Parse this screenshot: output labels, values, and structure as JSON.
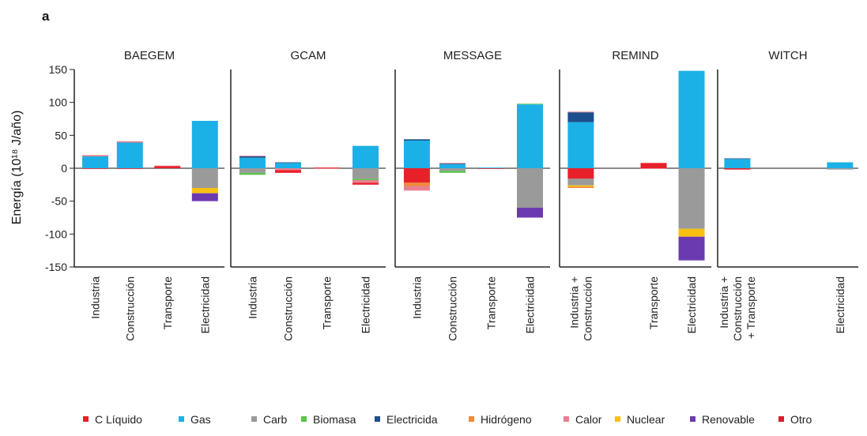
{
  "panel_label": "a",
  "chart_data": {
    "type": "bar",
    "stacked": true,
    "ylabel": "Energía (10¹⁸ J/año)",
    "ylim": [
      -150,
      150
    ],
    "yticks": [
      150,
      100,
      50,
      0,
      -50,
      -100,
      -150
    ],
    "grid": false,
    "legend_position": "bottom",
    "series": [
      {
        "name": "C Líquido",
        "color": "#e8202a"
      },
      {
        "name": "Gas",
        "color": "#1bb1e6"
      },
      {
        "name": "Carb",
        "color": "#9a9a9a"
      },
      {
        "name": "Biomasa",
        "color": "#5cc24a"
      },
      {
        "name": "Electricida",
        "color": "#1d4f8c"
      },
      {
        "name": "Hidrógeno",
        "color": "#ef8a3a"
      },
      {
        "name": "Calor",
        "color": "#e98090"
      },
      {
        "name": "Nuclear",
        "color": "#f9c012"
      },
      {
        "name": "Renovable",
        "color": "#6c3ab0"
      },
      {
        "name": "Otro",
        "color": "#d81e2a"
      }
    ],
    "panels": [
      {
        "title": "BAEGEM",
        "categories": [
          {
            "label": "Industria",
            "segments": [
              {
                "series": "Gas",
                "value": 18
              },
              {
                "series": "Calor",
                "value": 2
              },
              {
                "series": "C Líquido",
                "value": -1
              }
            ]
          },
          {
            "label": "Construcción",
            "segments": [
              {
                "series": "Gas",
                "value": 39
              },
              {
                "series": "Calor",
                "value": 2
              },
              {
                "series": "C Líquido",
                "value": -1
              }
            ]
          },
          {
            "label": "Transporte",
            "segments": [
              {
                "series": "C Líquido",
                "value": 3
              },
              {
                "series": "Calor",
                "value": 1
              }
            ]
          },
          {
            "label": "Electricidad",
            "segments": [
              {
                "series": "Gas",
                "value": 72
              },
              {
                "series": "Carb",
                "value": -30
              },
              {
                "series": "Nuclear",
                "value": -8
              },
              {
                "series": "Renovable",
                "value": -12
              }
            ]
          }
        ]
      },
      {
        "title": "GCAM",
        "categories": [
          {
            "label": "Industria",
            "segments": [
              {
                "series": "Gas",
                "value": 16
              },
              {
                "series": "Electricida",
                "value": 2
              },
              {
                "series": "Calor",
                "value": 1
              },
              {
                "series": "Carb",
                "value": -7
              },
              {
                "series": "Biomasa",
                "value": -3
              }
            ]
          },
          {
            "label": "Construcción",
            "segments": [
              {
                "series": "Gas",
                "value": 8
              },
              {
                "series": "Electricida",
                "value": 1
              },
              {
                "series": "Calor",
                "value": -3
              },
              {
                "series": "C Líquido",
                "value": -4
              }
            ]
          },
          {
            "label": "Transporte",
            "segments": [
              {
                "series": "C Líquido",
                "value": 1
              },
              {
                "series": "Calor",
                "value": -1
              }
            ]
          },
          {
            "label": "Electricidad",
            "segments": [
              {
                "series": "Gas",
                "value": 34
              },
              {
                "series": "Carb",
                "value": -16
              },
              {
                "series": "Biomasa",
                "value": -2
              },
              {
                "series": "Calor",
                "value": -4
              },
              {
                "series": "C Líquido",
                "value": -3
              }
            ]
          }
        ]
      },
      {
        "title": "MESSAGE",
        "categories": [
          {
            "label": "Industria",
            "segments": [
              {
                "series": "Gas",
                "value": 42
              },
              {
                "series": "Electricida",
                "value": 2
              },
              {
                "series": "C Líquido",
                "value": -22
              },
              {
                "series": "Hidrógeno",
                "value": -5
              },
              {
                "series": "Calor",
                "value": -7
              }
            ]
          },
          {
            "label": "Construcción",
            "segments": [
              {
                "series": "Gas",
                "value": 6
              },
              {
                "series": "Electricida",
                "value": 1
              },
              {
                "series": "Calor",
                "value": 1
              },
              {
                "series": "Carb",
                "value": -4
              },
              {
                "series": "Biomasa",
                "value": -3
              }
            ]
          },
          {
            "label": "Transporte",
            "segments": [
              {
                "series": "Gas",
                "value": 1
              },
              {
                "series": "C Líquido",
                "value": -1
              }
            ]
          },
          {
            "label": "Electricidad",
            "segments": [
              {
                "series": "Gas",
                "value": 97
              },
              {
                "series": "Biomasa",
                "value": 1
              },
              {
                "series": "Carb",
                "value": -60
              },
              {
                "series": "Renovable",
                "value": -15
              }
            ]
          }
        ]
      },
      {
        "title": "REMIND",
        "categories": [
          {
            "label": "Industria +\nConstrucción",
            "segments": [
              {
                "series": "Gas",
                "value": 70
              },
              {
                "series": "Electricida",
                "value": 15
              },
              {
                "series": "Calor",
                "value": 1
              },
              {
                "series": "C Líquido",
                "value": -16
              },
              {
                "series": "Carb",
                "value": -10
              },
              {
                "series": "Nuclear",
                "value": -2
              },
              {
                "series": "Hidrógeno",
                "value": -2
              }
            ]
          },
          {
            "label": "",
            "segments": []
          },
          {
            "label": "Transporte",
            "segments": [
              {
                "series": "C Líquido",
                "value": 8
              },
              {
                "series": "Calor",
                "value": -1
              }
            ]
          },
          {
            "label": "Electricidad",
            "segments": [
              {
                "series": "Gas",
                "value": 148
              },
              {
                "series": "Carb",
                "value": -92
              },
              {
                "series": "Nuclear",
                "value": -12
              },
              {
                "series": "Renovable",
                "value": -36
              }
            ]
          }
        ]
      },
      {
        "title": "WITCH",
        "categories": [
          {
            "label": "Industria +\nConstrucción\n+ Transporte",
            "segments": [
              {
                "series": "Gas",
                "value": 14
              },
              {
                "series": "Electricida",
                "value": 1
              },
              {
                "series": "C Líquido",
                "value": -2
              }
            ]
          },
          {
            "label": "",
            "segments": []
          },
          {
            "label": "",
            "segments": []
          },
          {
            "label": "Electricidad",
            "segments": [
              {
                "series": "Gas",
                "value": 9
              },
              {
                "series": "Carb",
                "value": -2
              }
            ]
          }
        ]
      }
    ]
  }
}
